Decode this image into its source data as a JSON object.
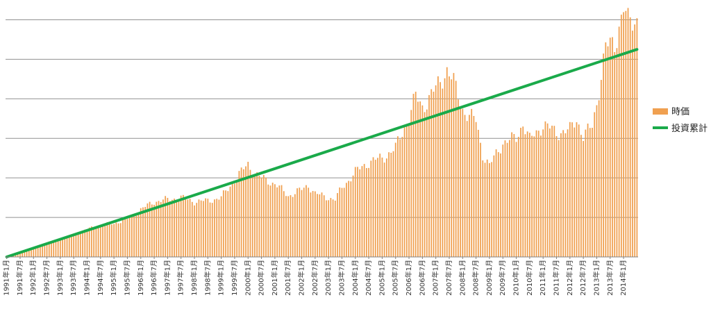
{
  "chart_data": {
    "type": "bar",
    "title": "",
    "xlabel": "",
    "ylabel": "",
    "ylim": [
      0,
      6.5
    ],
    "grid": true,
    "legend_placement": "right",
    "colors": {
      "bars": "#F0A050",
      "line": "#1AAA4A",
      "grid": "#909090",
      "axis": "#808080"
    },
    "x_tick_labels": [
      "1991年1月",
      "1991年7月",
      "1992年1月",
      "1992年7月",
      "1993年1月",
      "1993年7月",
      "1994年1月",
      "1994年7月",
      "1995年1月",
      "1995年7月",
      "1996年1月",
      "1996年7月",
      "1997年1月",
      "1997年7月",
      "1998年1月",
      "1998年7月",
      "1999年1月",
      "1999年7月",
      "2000年1月",
      "2000年7月",
      "2001年1月",
      "2001年7月",
      "2002年1月",
      "2002年7月",
      "2003年1月",
      "2003年7月",
      "2004年1月",
      "2004年7月",
      "2005年1月",
      "2005年7月",
      "2006年1月",
      "2006年7月",
      "2007年1月",
      "2007年7月",
      "2008年1月",
      "2008年7月",
      "2009年1月",
      "2009年7月",
      "2010年1月",
      "2010年7月",
      "2011年1月",
      "2011年7月",
      "2012年1月",
      "2012年7月",
      "2013年1月",
      "2013年7月",
      "2014年1月"
    ],
    "series": [
      {
        "name": "時価",
        "type": "bar",
        "anchors": [
          [
            "1991-01",
            0.02
          ],
          [
            "1991-07",
            0.12
          ],
          [
            "1992-01",
            0.24
          ],
          [
            "1992-07",
            0.35
          ],
          [
            "1993-01",
            0.45
          ],
          [
            "1993-07",
            0.56
          ],
          [
            "1994-01",
            0.7
          ],
          [
            "1994-07",
            0.8
          ],
          [
            "1995-01",
            0.85
          ],
          [
            "1995-07",
            0.95
          ],
          [
            "1996-01",
            1.2
          ],
          [
            "1996-07",
            1.4
          ],
          [
            "1997-01",
            1.45
          ],
          [
            "1997-07",
            1.5
          ],
          [
            "1998-01",
            1.4
          ],
          [
            "1998-07",
            1.42
          ],
          [
            "1999-01",
            1.5
          ],
          [
            "1999-07",
            1.95
          ],
          [
            "2000-01",
            2.35
          ],
          [
            "2000-04",
            2.1
          ],
          [
            "2000-07",
            2.0
          ],
          [
            "2001-01",
            1.85
          ],
          [
            "2001-07",
            1.55
          ],
          [
            "2002-01",
            1.7
          ],
          [
            "2002-04",
            1.82
          ],
          [
            "2002-07",
            1.6
          ],
          [
            "2003-01",
            1.5
          ],
          [
            "2003-04",
            1.45
          ],
          [
            "2003-07",
            1.75
          ],
          [
            "2004-01",
            2.15
          ],
          [
            "2004-07",
            2.4
          ],
          [
            "2005-01",
            2.5
          ],
          [
            "2005-07",
            2.75
          ],
          [
            "2006-01",
            3.55
          ],
          [
            "2006-04",
            4.05
          ],
          [
            "2006-07",
            3.8
          ],
          [
            "2007-01",
            4.25
          ],
          [
            "2007-06",
            4.75
          ],
          [
            "2007-09",
            4.4
          ],
          [
            "2008-01",
            3.75
          ],
          [
            "2008-04",
            3.55
          ],
          [
            "2008-07",
            3.45
          ],
          [
            "2008-10",
            2.6
          ],
          [
            "2009-01",
            2.3
          ],
          [
            "2009-07",
            2.9
          ],
          [
            "2010-01",
            3.0
          ],
          [
            "2010-04",
            3.4
          ],
          [
            "2010-07",
            2.95
          ],
          [
            "2011-01",
            3.35
          ],
          [
            "2011-07",
            3.15
          ],
          [
            "2012-01",
            3.2
          ],
          [
            "2012-04",
            3.5
          ],
          [
            "2012-07",
            3.05
          ],
          [
            "2012-11",
            3.3
          ],
          [
            "2013-01",
            3.9
          ],
          [
            "2013-05",
            5.3
          ],
          [
            "2013-09",
            5.4
          ],
          [
            "2014-01",
            6.3
          ],
          [
            "2014-03",
            5.9
          ],
          [
            "2014-07",
            6.05
          ]
        ]
      },
      {
        "name": "投資累計",
        "type": "line",
        "x": [
          "1991-01",
          "2014-07"
        ],
        "values": [
          0,
          5.25
        ]
      }
    ]
  }
}
